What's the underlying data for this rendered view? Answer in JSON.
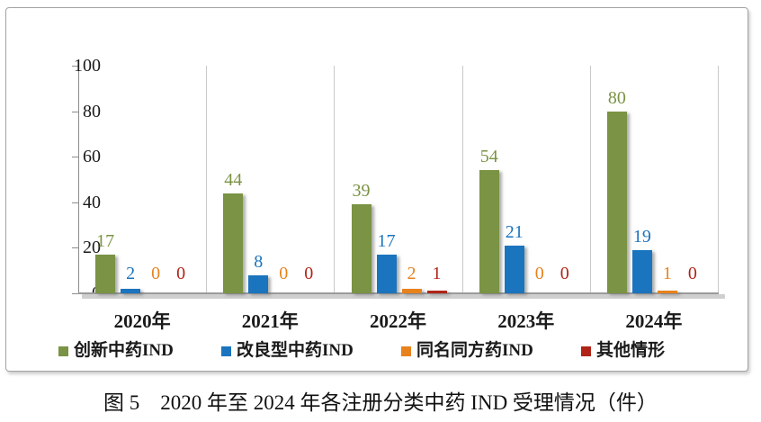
{
  "chart_data": {
    "type": "bar",
    "caption": "图 5　2020 年至 2024 年各注册分类中药 IND 受理情况（件）",
    "categories": [
      "2020年",
      "2021年",
      "2022年",
      "2023年",
      "2024年"
    ],
    "series": [
      {
        "name": "创新中药IND",
        "color": "#7A9344",
        "values": [
          17,
          44,
          39,
          54,
          80
        ]
      },
      {
        "name": "改良型中药IND",
        "color": "#1B74BE",
        "values": [
          2,
          8,
          17,
          21,
          19
        ]
      },
      {
        "name": "同名同方药IND",
        "color": "#E8821D",
        "values": [
          0,
          0,
          2,
          0,
          1
        ]
      },
      {
        "name": "其他情形",
        "color": "#B02418",
        "values": [
          0,
          0,
          1,
          0,
          0
        ]
      }
    ],
    "ylim": [
      0,
      100
    ],
    "yticks": [
      0,
      20,
      40,
      60,
      80,
      100
    ],
    "grid": "vertical category dividers",
    "legend_position": "bottom",
    "value_labels": "colored same as series",
    "axis_color": "#8c8c8c",
    "gridline_color": "#c9c9c9"
  }
}
